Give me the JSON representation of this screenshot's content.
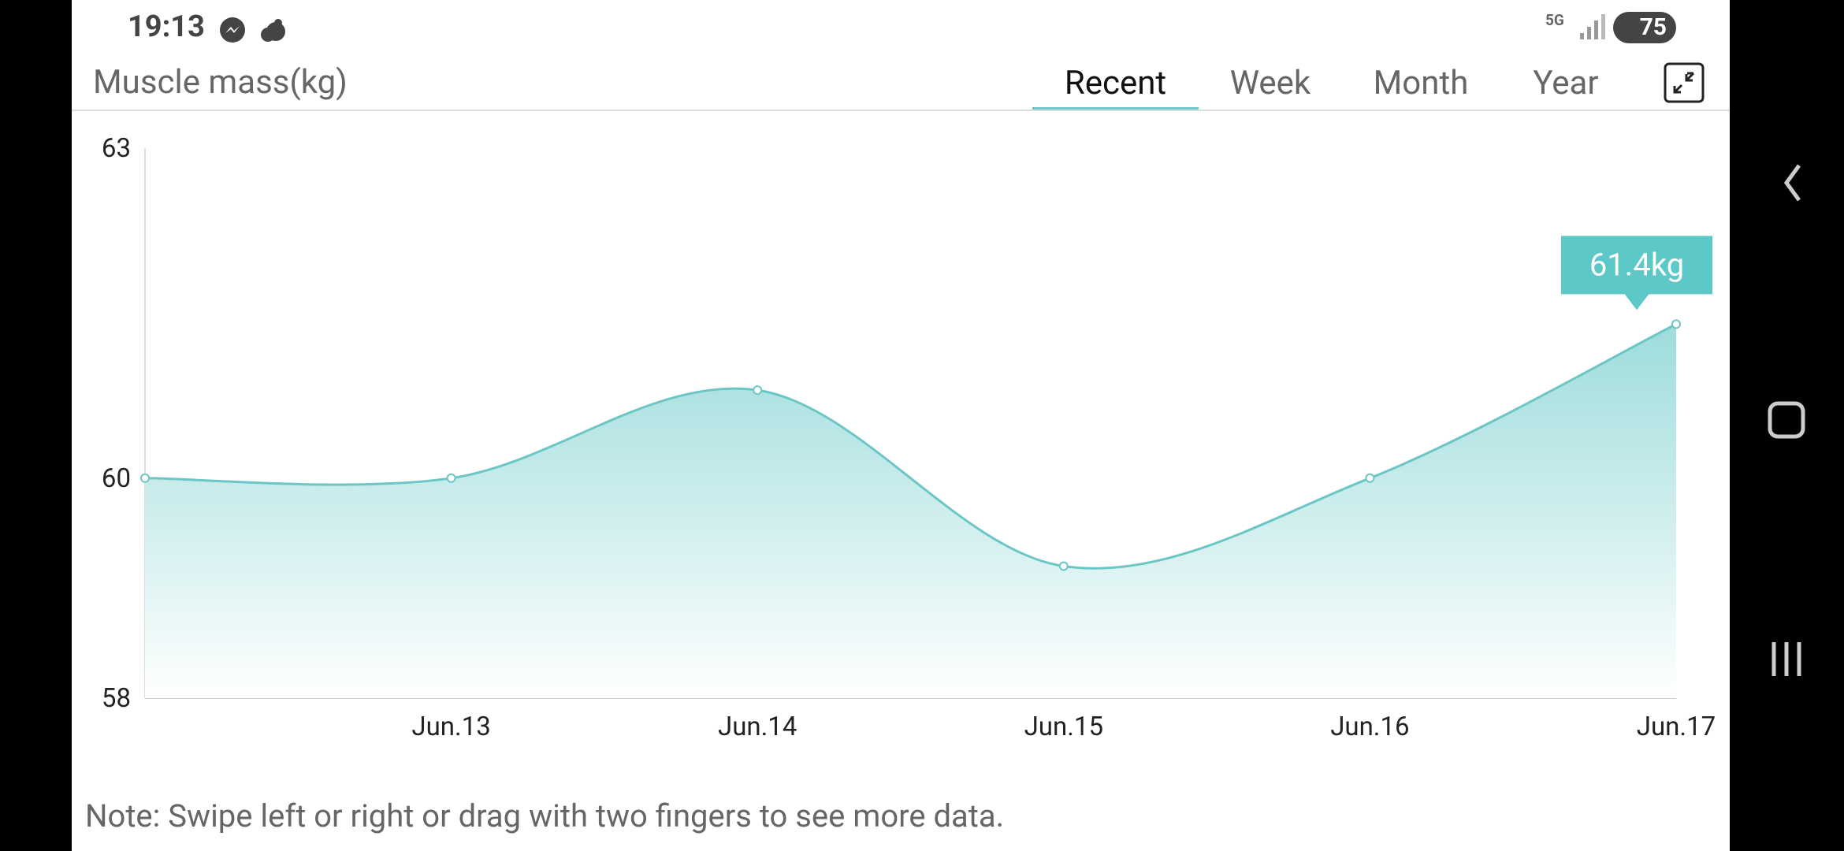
{
  "status_bar": {
    "time": "19:13",
    "network": "5G",
    "battery": "75"
  },
  "header": {
    "title": "Muscle mass(kg)",
    "tabs": [
      "Recent",
      "Week",
      "Month",
      "Year"
    ]
  },
  "chart_data": {
    "type": "area",
    "categories": [
      null,
      "Jun.13",
      "Jun.14",
      "Jun.15",
      "Jun.16",
      "Jun.17"
    ],
    "values": [
      60,
      60,
      60.8,
      59.2,
      60,
      61.4
    ],
    "value_labels": [
      null,
      null,
      null,
      null,
      null,
      "61.4kg"
    ],
    "color": "#6cc6c6",
    "ylim": [
      58,
      63
    ],
    "yticks": [
      58,
      60,
      63
    ],
    "grid": false
  },
  "note": "Note: Swipe left or right or drag with two fingers to see more data."
}
